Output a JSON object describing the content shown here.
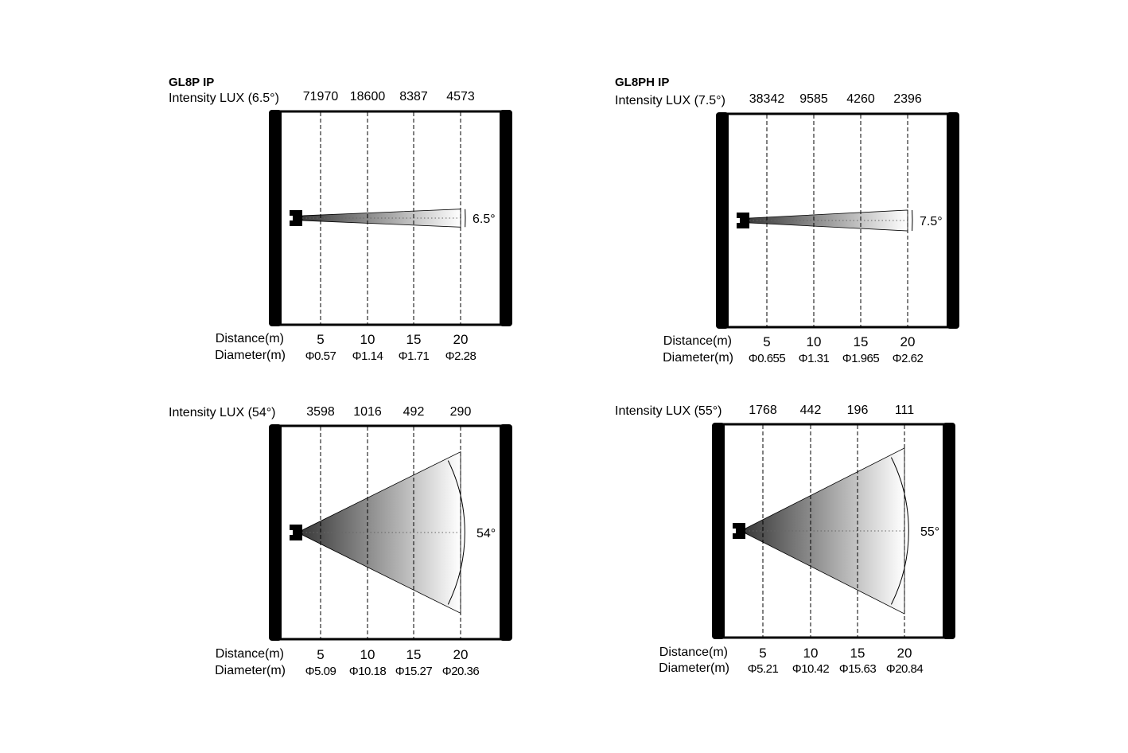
{
  "panels": [
    {
      "title": "GL8P IP",
      "intensity_label": "Intensity LUX (6.5°)",
      "beam_angle": 6.5,
      "angle_label": "6.5°",
      "intensity": [
        "71970",
        "18600",
        "8387",
        "4573"
      ],
      "distance_label": "Distance(m)",
      "distances": [
        "5",
        "10",
        "15",
        "20"
      ],
      "diameter_label": "Diameter(m)",
      "diameters": [
        "Φ0.57",
        "Φ1.14",
        "Φ1.71",
        "Φ2.28"
      ]
    },
    {
      "title": "GL8PH IP",
      "intensity_label": "Intensity LUX (7.5°)",
      "beam_angle": 7.5,
      "angle_label": "7.5°",
      "intensity": [
        "38342",
        "9585",
        "4260",
        "2396"
      ],
      "distance_label": "Distance(m)",
      "distances": [
        "5",
        "10",
        "15",
        "20"
      ],
      "diameter_label": "Diameter(m)",
      "diameters": [
        "Φ0.655",
        "Φ1.31",
        "Φ1.965",
        "Φ2.62"
      ]
    },
    {
      "title": "",
      "intensity_label": "Intensity LUX (54°)",
      "beam_angle": 54,
      "angle_label": "54°",
      "intensity": [
        "3598",
        "1016",
        "492",
        "290"
      ],
      "distance_label": "Distance(m)",
      "distances": [
        "5",
        "10",
        "15",
        "20"
      ],
      "diameter_label": "Diameter(m)",
      "diameters": [
        "Φ5.09",
        "Φ10.18",
        "Φ15.27",
        "Φ20.36"
      ]
    },
    {
      "title": "",
      "intensity_label": "Intensity LUX (55°)",
      "beam_angle": 55,
      "angle_label": "55°",
      "intensity": [
        "1768",
        "442",
        "196",
        "111"
      ],
      "distance_label": "Distance(m)",
      "distances": [
        "5",
        "10",
        "15",
        "20"
      ],
      "diameter_label": "Diameter(m)",
      "diameters": [
        "Φ5.21",
        "Φ10.42",
        "Φ15.63",
        "Φ20.84"
      ]
    }
  ],
  "colors": {
    "frame": "#000000",
    "beam_start": "#3a3a3a",
    "beam_end": "#ffffff"
  }
}
